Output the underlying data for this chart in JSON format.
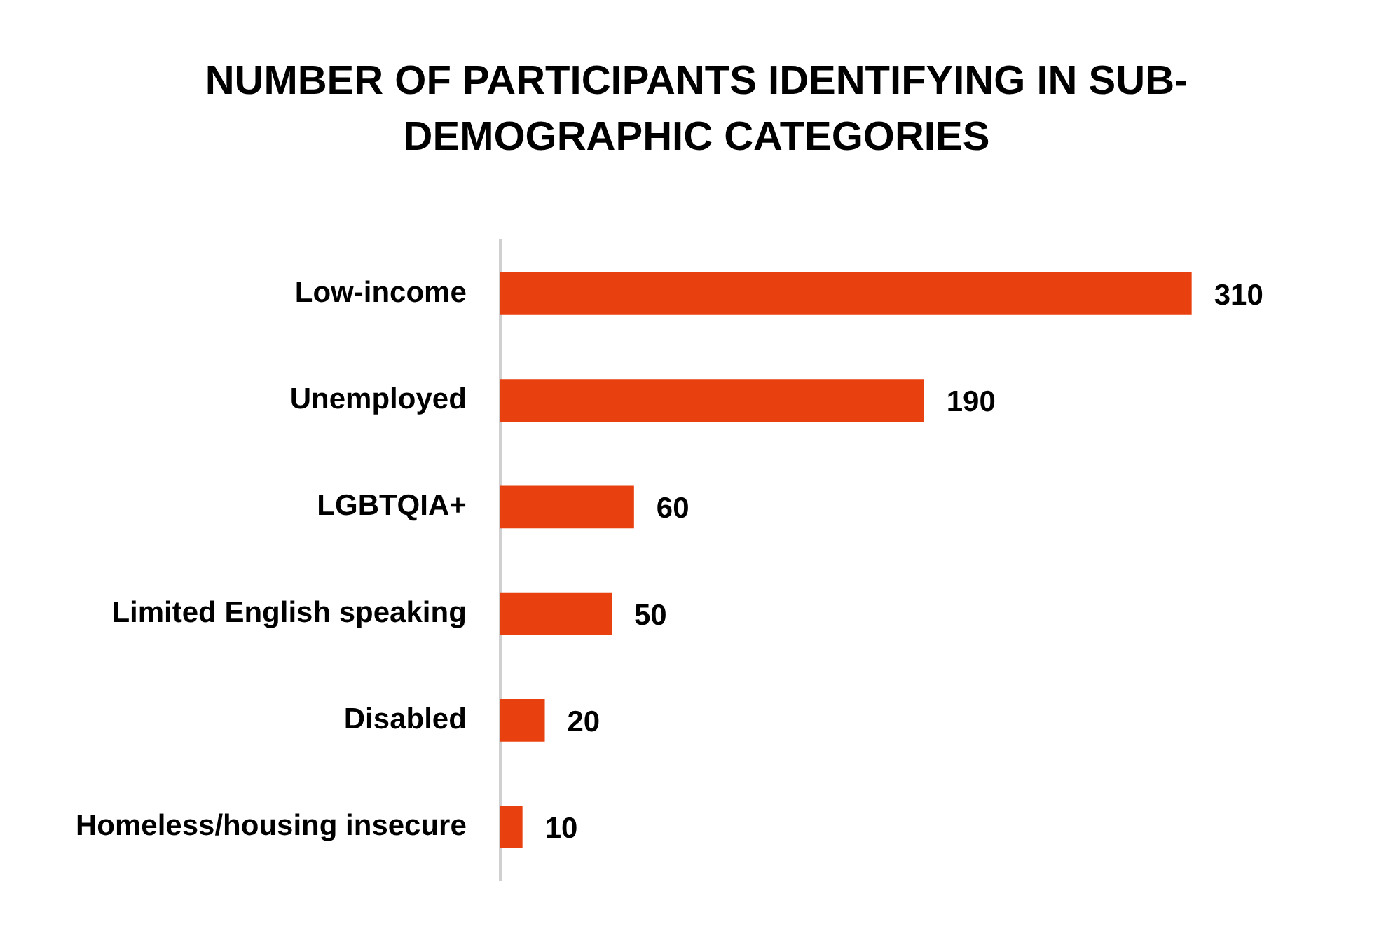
{
  "chart_data": {
    "type": "bar",
    "orientation": "horizontal",
    "title": "NUMBER OF PARTICIPANTS IDENTIFYING IN SUB-DEMOGRAPHIC CATEGORIES",
    "categories": [
      "Low-income",
      "Unemployed",
      "LGBTQIA+",
      "Limited English speaking",
      "Disabled",
      "Homeless/housing insecure"
    ],
    "values": [
      310,
      190,
      60,
      50,
      20,
      10
    ],
    "color": "#e8400f",
    "data_labels": true,
    "legend": false
  }
}
